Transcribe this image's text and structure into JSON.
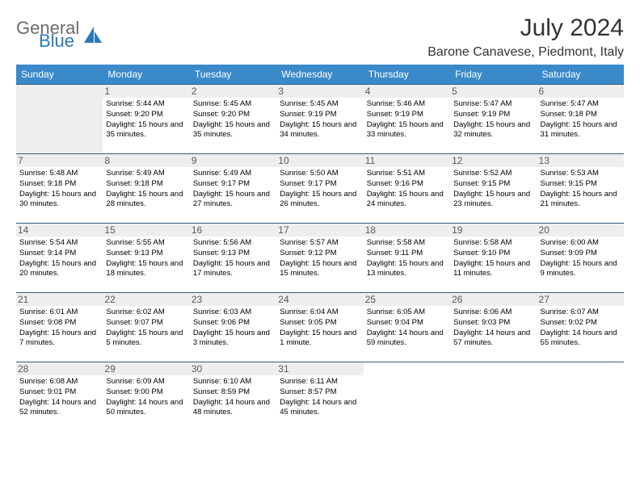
{
  "brand": {
    "part1": "General",
    "part2": "Blue",
    "logo_color": "#2d78b8"
  },
  "title": "July 2024",
  "location": "Barone Canavese, Piedmont, Italy",
  "colors": {
    "header_bg": "#3a89c9",
    "header_text": "#ffffff",
    "cell_border": "#2d5f8a",
    "daynum_bg": "#eeeeee",
    "page_bg": "#ffffff"
  },
  "weekdays": [
    "Sunday",
    "Monday",
    "Tuesday",
    "Wednesday",
    "Thursday",
    "Friday",
    "Saturday"
  ],
  "weeks": [
    [
      {
        "n": "",
        "lines": []
      },
      {
        "n": "1",
        "lines": [
          "Sunrise: 5:44 AM",
          "Sunset: 9:20 PM",
          "Daylight: 15 hours and 35 minutes."
        ]
      },
      {
        "n": "2",
        "lines": [
          "Sunrise: 5:45 AM",
          "Sunset: 9:20 PM",
          "Daylight: 15 hours and 35 minutes."
        ]
      },
      {
        "n": "3",
        "lines": [
          "Sunrise: 5:45 AM",
          "Sunset: 9:19 PM",
          "Daylight: 15 hours and 34 minutes."
        ]
      },
      {
        "n": "4",
        "lines": [
          "Sunrise: 5:46 AM",
          "Sunset: 9:19 PM",
          "Daylight: 15 hours and 33 minutes."
        ]
      },
      {
        "n": "5",
        "lines": [
          "Sunrise: 5:47 AM",
          "Sunset: 9:19 PM",
          "Daylight: 15 hours and 32 minutes."
        ]
      },
      {
        "n": "6",
        "lines": [
          "Sunrise: 5:47 AM",
          "Sunset: 9:18 PM",
          "Daylight: 15 hours and 31 minutes."
        ]
      }
    ],
    [
      {
        "n": "7",
        "lines": [
          "Sunrise: 5:48 AM",
          "Sunset: 9:18 PM",
          "Daylight: 15 hours and 30 minutes."
        ]
      },
      {
        "n": "8",
        "lines": [
          "Sunrise: 5:49 AM",
          "Sunset: 9:18 PM",
          "Daylight: 15 hours and 28 minutes."
        ]
      },
      {
        "n": "9",
        "lines": [
          "Sunrise: 5:49 AM",
          "Sunset: 9:17 PM",
          "Daylight: 15 hours and 27 minutes."
        ]
      },
      {
        "n": "10",
        "lines": [
          "Sunrise: 5:50 AM",
          "Sunset: 9:17 PM",
          "Daylight: 15 hours and 26 minutes."
        ]
      },
      {
        "n": "11",
        "lines": [
          "Sunrise: 5:51 AM",
          "Sunset: 9:16 PM",
          "Daylight: 15 hours and 24 minutes."
        ]
      },
      {
        "n": "12",
        "lines": [
          "Sunrise: 5:52 AM",
          "Sunset: 9:15 PM",
          "Daylight: 15 hours and 23 minutes."
        ]
      },
      {
        "n": "13",
        "lines": [
          "Sunrise: 5:53 AM",
          "Sunset: 9:15 PM",
          "Daylight: 15 hours and 21 minutes."
        ]
      }
    ],
    [
      {
        "n": "14",
        "lines": [
          "Sunrise: 5:54 AM",
          "Sunset: 9:14 PM",
          "Daylight: 15 hours and 20 minutes."
        ]
      },
      {
        "n": "15",
        "lines": [
          "Sunrise: 5:55 AM",
          "Sunset: 9:13 PM",
          "Daylight: 15 hours and 18 minutes."
        ]
      },
      {
        "n": "16",
        "lines": [
          "Sunrise: 5:56 AM",
          "Sunset: 9:13 PM",
          "Daylight: 15 hours and 17 minutes."
        ]
      },
      {
        "n": "17",
        "lines": [
          "Sunrise: 5:57 AM",
          "Sunset: 9:12 PM",
          "Daylight: 15 hours and 15 minutes."
        ]
      },
      {
        "n": "18",
        "lines": [
          "Sunrise: 5:58 AM",
          "Sunset: 9:11 PM",
          "Daylight: 15 hours and 13 minutes."
        ]
      },
      {
        "n": "19",
        "lines": [
          "Sunrise: 5:58 AM",
          "Sunset: 9:10 PM",
          "Daylight: 15 hours and 11 minutes."
        ]
      },
      {
        "n": "20",
        "lines": [
          "Sunrise: 6:00 AM",
          "Sunset: 9:09 PM",
          "Daylight: 15 hours and 9 minutes."
        ]
      }
    ],
    [
      {
        "n": "21",
        "lines": [
          "Sunrise: 6:01 AM",
          "Sunset: 9:08 PM",
          "Daylight: 15 hours and 7 minutes."
        ]
      },
      {
        "n": "22",
        "lines": [
          "Sunrise: 6:02 AM",
          "Sunset: 9:07 PM",
          "Daylight: 15 hours and 5 minutes."
        ]
      },
      {
        "n": "23",
        "lines": [
          "Sunrise: 6:03 AM",
          "Sunset: 9:06 PM",
          "Daylight: 15 hours and 3 minutes."
        ]
      },
      {
        "n": "24",
        "lines": [
          "Sunrise: 6:04 AM",
          "Sunset: 9:05 PM",
          "Daylight: 15 hours and 1 minute."
        ]
      },
      {
        "n": "25",
        "lines": [
          "Sunrise: 6:05 AM",
          "Sunset: 9:04 PM",
          "Daylight: 14 hours and 59 minutes."
        ]
      },
      {
        "n": "26",
        "lines": [
          "Sunrise: 6:06 AM",
          "Sunset: 9:03 PM",
          "Daylight: 14 hours and 57 minutes."
        ]
      },
      {
        "n": "27",
        "lines": [
          "Sunrise: 6:07 AM",
          "Sunset: 9:02 PM",
          "Daylight: 14 hours and 55 minutes."
        ]
      }
    ],
    [
      {
        "n": "28",
        "lines": [
          "Sunrise: 6:08 AM",
          "Sunset: 9:01 PM",
          "Daylight: 14 hours and 52 minutes."
        ]
      },
      {
        "n": "29",
        "lines": [
          "Sunrise: 6:09 AM",
          "Sunset: 9:00 PM",
          "Daylight: 14 hours and 50 minutes."
        ]
      },
      {
        "n": "30",
        "lines": [
          "Sunrise: 6:10 AM",
          "Sunset: 8:59 PM",
          "Daylight: 14 hours and 48 minutes."
        ]
      },
      {
        "n": "31",
        "lines": [
          "Sunrise: 6:11 AM",
          "Sunset: 8:57 PM",
          "Daylight: 14 hours and 45 minutes."
        ]
      },
      {
        "n": "",
        "lines": []
      },
      {
        "n": "",
        "lines": []
      },
      {
        "n": "",
        "lines": []
      }
    ]
  ]
}
